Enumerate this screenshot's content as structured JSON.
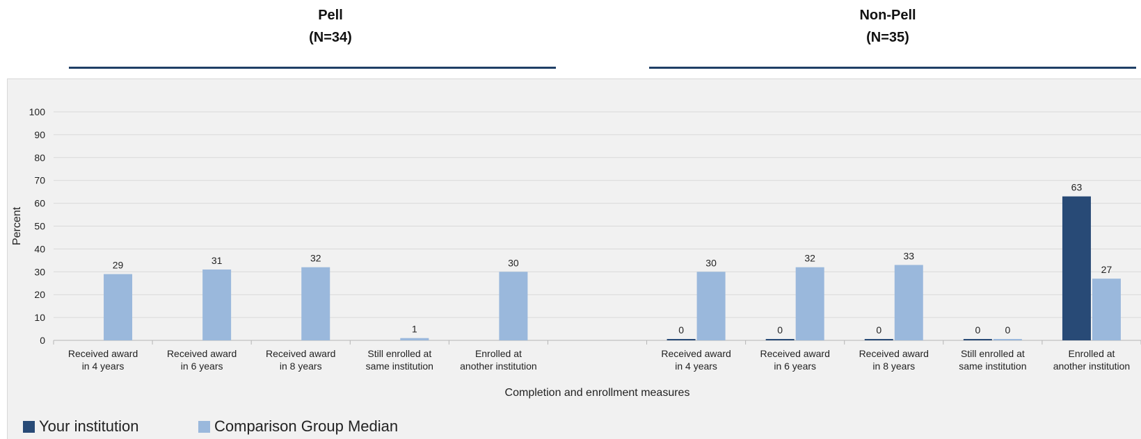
{
  "groups": [
    {
      "title": "Pell",
      "subtitle": "(N=34)"
    },
    {
      "title": "Non-Pell",
      "subtitle": "(N=35)"
    }
  ],
  "colors": {
    "your_institution": "#284a76",
    "comparison": "#9ab8dc",
    "group_line": "#1f3f66",
    "grid": "#d9d9d9"
  },
  "legend": {
    "your_institution": "Your institution",
    "comparison": "Comparison Group Median"
  },
  "chart_data": {
    "type": "bar",
    "ylabel": "Percent",
    "xlabel": "Completion and enrollment measures",
    "ylim": [
      0,
      100
    ],
    "yticks": [
      0,
      10,
      20,
      30,
      40,
      50,
      60,
      70,
      80,
      90,
      100
    ],
    "grid": true,
    "legend_position": "bottom-left",
    "categories": [
      [
        "Received award",
        "in 4 years"
      ],
      [
        "Received award",
        "in 6 years"
      ],
      [
        "Received award",
        "in 8 years"
      ],
      [
        "Still enrolled at",
        "same institution"
      ],
      [
        "Enrolled at",
        "another institution"
      ],
      [
        "Received award",
        "in 4 years"
      ],
      [
        "Received award",
        "in 6 years"
      ],
      [
        "Received award",
        "in 8 years"
      ],
      [
        "Still enrolled at",
        "same institution"
      ],
      [
        "Enrolled at",
        "another institution"
      ]
    ],
    "series": [
      {
        "name": "Your institution",
        "values": [
          null,
          null,
          null,
          null,
          null,
          0,
          0,
          0,
          0,
          63
        ]
      },
      {
        "name": "Comparison Group Median",
        "values": [
          29,
          31,
          32,
          1,
          30,
          30,
          32,
          33,
          0,
          27
        ]
      }
    ]
  }
}
